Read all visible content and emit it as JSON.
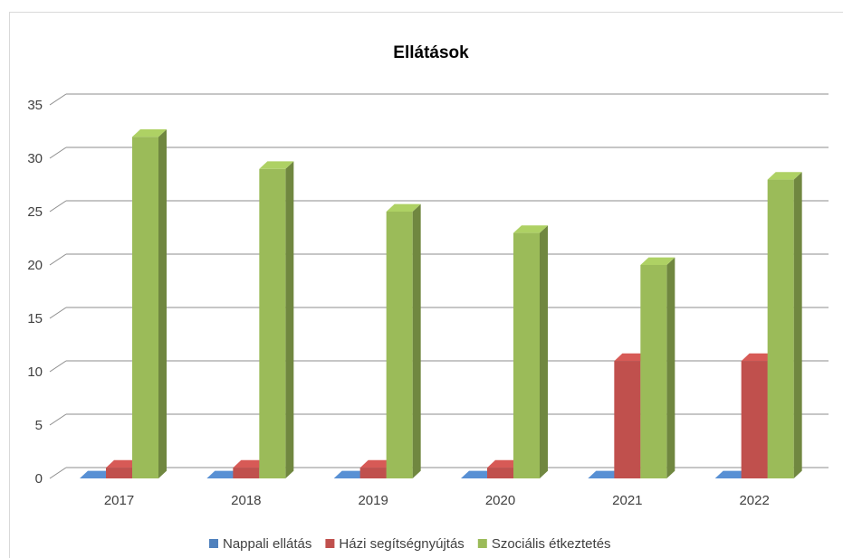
{
  "chart_data": {
    "type": "bar",
    "title": "Ellátások",
    "categories": [
      "2017",
      "2018",
      "2019",
      "2020",
      "2021",
      "2022"
    ],
    "series": [
      {
        "name": "Nappali ellátás",
        "values": [
          0,
          0,
          0,
          0,
          0,
          0
        ],
        "color": "#4f81bd"
      },
      {
        "name": "Házi segítségnyújtás",
        "values": [
          1,
          1,
          1,
          1,
          11,
          11
        ],
        "color": "#c0504d"
      },
      {
        "name": "Szociális étkeztetés",
        "values": [
          32,
          29,
          25,
          23,
          20,
          28
        ],
        "color": "#9bbb59"
      }
    ],
    "yticks": [
      "0",
      "5",
      "10",
      "15",
      "20",
      "25",
      "30",
      "35"
    ],
    "ylim": [
      0,
      35
    ],
    "grid": true,
    "legend": "bottom",
    "style": "3d-column"
  }
}
